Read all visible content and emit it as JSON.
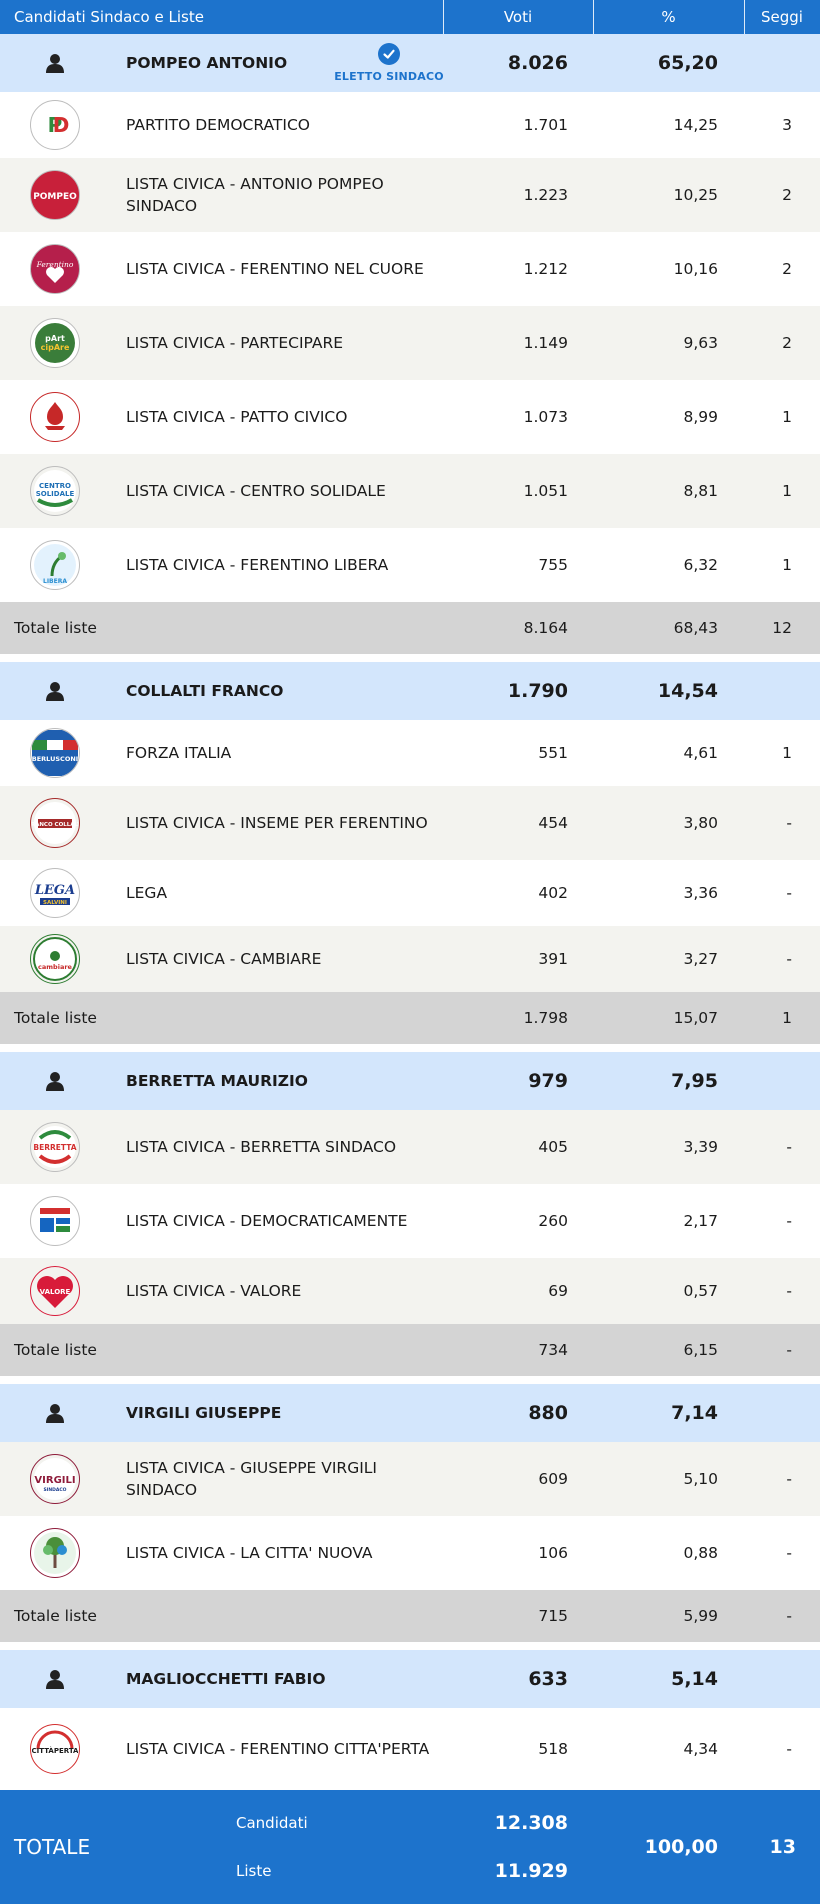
{
  "header": {
    "col_name": "Candidati Sindaco e Liste",
    "col_voti": "Voti",
    "col_pct": "%",
    "col_seggi": "Seggi"
  },
  "colors": {
    "accent": "#1d73cc",
    "candidate_bg": "#d3e6fc",
    "total_bg": "#d4d4d4"
  },
  "elected_label": "ELETTO SINDACO",
  "totals_label": "Totale liste",
  "groups": [
    {
      "candidate": {
        "name": "POMPEO ANTONIO",
        "voti": "8.026",
        "pct": "65,20",
        "elected": true
      },
      "lists": [
        {
          "name": "PARTITO DEMOCRATICO",
          "voti": "1.701",
          "pct": "14,25",
          "seggi": "3",
          "logo": "pd-logo",
          "color": "#2e8b3d"
        },
        {
          "name": "LISTA CIVICA - ANTONIO POMPEO SINDACO",
          "voti": "1.223",
          "pct": "10,25",
          "seggi": "2",
          "logo": "pompeo-logo",
          "color": "#c8203a"
        },
        {
          "name": "LISTA CIVICA - FERENTINO NEL CUORE",
          "voti": "1.212",
          "pct": "10,16",
          "seggi": "2",
          "logo": "ferentino-cuore-logo",
          "color": "#b51f4b"
        },
        {
          "name": "LISTA CIVICA - PARTECIPARE",
          "voti": "1.149",
          "pct": "9,63",
          "seggi": "2",
          "logo": "partecipare-logo",
          "color": "#3a7d3a"
        },
        {
          "name": "LISTA CIVICA - PATTO CIVICO",
          "voti": "1.073",
          "pct": "8,99",
          "seggi": "1",
          "logo": "patto-civico-logo",
          "color": "#c62828"
        },
        {
          "name": "LISTA CIVICA - CENTRO SOLIDALE",
          "voti": "1.051",
          "pct": "8,81",
          "seggi": "1",
          "logo": "centro-solidale-logo",
          "color": "#1e6fb5"
        },
        {
          "name": "LISTA CIVICA - FERENTINO LIBERA",
          "voti": "755",
          "pct": "6,32",
          "seggi": "1",
          "logo": "ferentino-libera-logo",
          "color": "#2b8fd1"
        }
      ],
      "total": {
        "voti": "8.164",
        "pct": "68,43",
        "seggi": "12"
      }
    },
    {
      "candidate": {
        "name": "COLLALTI FRANCO",
        "voti": "1.790",
        "pct": "14,54",
        "elected": false
      },
      "lists": [
        {
          "name": "FORZA ITALIA",
          "voti": "551",
          "pct": "4,61",
          "seggi": "1",
          "logo": "forza-italia-logo",
          "color": "#1f5fb0"
        },
        {
          "name": "LISTA CIVICA - INSEME PER FERENTINO",
          "voti": "454",
          "pct": "3,80",
          "seggi": "-",
          "logo": "insieme-logo",
          "color": "#a52a2a"
        },
        {
          "name": "LEGA",
          "voti": "402",
          "pct": "3,36",
          "seggi": "-",
          "logo": "lega-logo",
          "color": "#1b3d8f"
        },
        {
          "name": "LISTA CIVICA - CAMBIARE",
          "voti": "391",
          "pct": "3,27",
          "seggi": "-",
          "logo": "cambiare-logo",
          "color": "#2e7d32"
        }
      ],
      "total": {
        "voti": "1.798",
        "pct": "15,07",
        "seggi": "1"
      }
    },
    {
      "candidate": {
        "name": "BERRETTA MAURIZIO",
        "voti": "979",
        "pct": "7,95",
        "elected": false
      },
      "lists": [
        {
          "name": "LISTA CIVICA - BERRETTA SINDACO",
          "voti": "405",
          "pct": "3,39",
          "seggi": "-",
          "logo": "berretta-logo",
          "color": "#d32f2f"
        },
        {
          "name": "LISTA CIVICA - DEMOCRATICAMENTE",
          "voti": "260",
          "pct": "2,17",
          "seggi": "-",
          "logo": "democraticamente-logo",
          "color": "#1565c0"
        },
        {
          "name": "LISTA CIVICA - VALORE",
          "voti": "69",
          "pct": "0,57",
          "seggi": "-",
          "logo": "valore-logo",
          "color": "#d81b3a"
        }
      ],
      "total": {
        "voti": "734",
        "pct": "6,15",
        "seggi": "-"
      }
    },
    {
      "candidate": {
        "name": "VIRGILI GIUSEPPE",
        "voti": "880",
        "pct": "7,14",
        "elected": false
      },
      "lists": [
        {
          "name": "LISTA CIVICA - GIUSEPPE VIRGILI SINDACO",
          "voti": "609",
          "pct": "5,10",
          "seggi": "-",
          "logo": "virgili-logo",
          "color": "#8e1b3a"
        },
        {
          "name": "LISTA CIVICA - LA CITTA' NUOVA",
          "voti": "106",
          "pct": "0,88",
          "seggi": "-",
          "logo": "citta-nuova-logo",
          "color": "#4a8f3a"
        }
      ],
      "total": {
        "voti": "715",
        "pct": "5,99",
        "seggi": "-"
      }
    },
    {
      "candidate": {
        "name": "MAGLIOCCHETTI FABIO",
        "voti": "633",
        "pct": "5,14",
        "elected": false
      },
      "lists": [
        {
          "name": "LISTA CIVICA - FERENTINO CITTA'PERTA",
          "voti": "518",
          "pct": "4,34",
          "seggi": "-",
          "logo": "citta-aperta-logo",
          "color": "#d32f2f"
        }
      ],
      "total": null
    }
  ],
  "footer": {
    "label": "TOTALE",
    "candidati_label": "Candidati",
    "candidati_voti": "12.308",
    "liste_label": "Liste",
    "liste_voti": "11.929",
    "pct": "100,00",
    "seggi": "13"
  }
}
